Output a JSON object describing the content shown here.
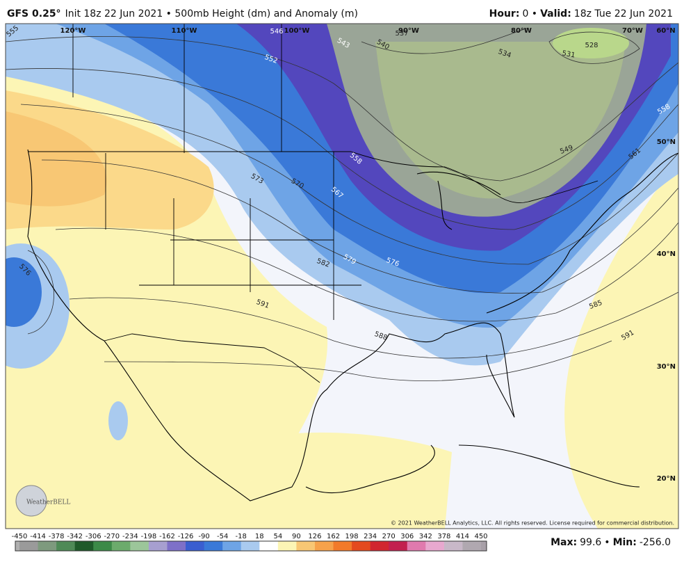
{
  "header": {
    "model": "GFS 0.25°",
    "title": "Init 18z 22 Jun 2021 • 500mb Height (dm) and Anomaly (m)",
    "hour_label": "Hour:",
    "hour": "0 •",
    "valid_label": "Valid:",
    "valid": "18z Tue 22 Jun 2021"
  },
  "map": {
    "longitudes": [
      "120°W",
      "110°W",
      "100°W",
      "90°W",
      "80°W",
      "70°W",
      "60°N"
    ],
    "latitudes": [
      "50°N",
      "40°N",
      "30°N",
      "20°N"
    ],
    "contour_labels": [
      "555",
      "552",
      "546",
      "543",
      "540",
      "537",
      "534",
      "531",
      "528",
      "558",
      "567",
      "573",
      "570",
      "582",
      "579",
      "576",
      "591",
      "588",
      "585",
      "591",
      "549",
      "561",
      "558",
      "576"
    ],
    "logo": "WeatherBELL",
    "copyright": "© 2021 WeatherBELL Analytics, LLC. All rights reserved. License required for commercial distribution."
  },
  "colorbar": {
    "ticks": [
      -450,
      -414,
      -378,
      -342,
      -306,
      -270,
      -234,
      -198,
      -162,
      -126,
      -90,
      -54,
      -18,
      18,
      54,
      90,
      126,
      162,
      198,
      234,
      270,
      306,
      342,
      378,
      414,
      450
    ]
  },
  "stats": {
    "max_label": "Max:",
    "max": "99.6",
    "sep": "•",
    "min_label": "Min:",
    "min": "-256.0"
  }
}
